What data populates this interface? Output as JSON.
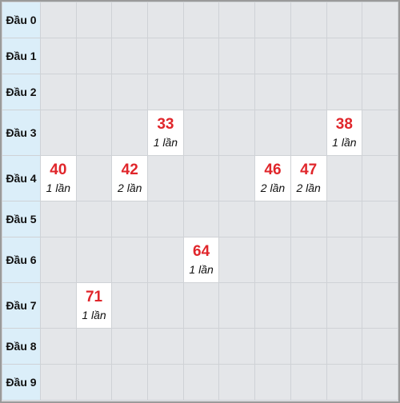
{
  "rows": [
    {
      "label": "Đầu 0",
      "cells": [
        null,
        null,
        null,
        null,
        null,
        null,
        null,
        null,
        null,
        null
      ]
    },
    {
      "label": "Đầu 1",
      "cells": [
        null,
        null,
        null,
        null,
        null,
        null,
        null,
        null,
        null,
        null
      ]
    },
    {
      "label": "Đầu 2",
      "cells": [
        null,
        null,
        null,
        null,
        null,
        null,
        null,
        null,
        null,
        null
      ]
    },
    {
      "label": "Đầu 3",
      "cells": [
        null,
        null,
        null,
        {
          "number": "33",
          "count": "1 lần"
        },
        null,
        null,
        null,
        null,
        {
          "number": "38",
          "count": "1 lần"
        },
        null
      ]
    },
    {
      "label": "Đầu 4",
      "cells": [
        {
          "number": "40",
          "count": "1 lần"
        },
        null,
        {
          "number": "42",
          "count": "2 lần"
        },
        null,
        null,
        null,
        {
          "number": "46",
          "count": "2 lần"
        },
        {
          "number": "47",
          "count": "2 lần"
        },
        null,
        null
      ]
    },
    {
      "label": "Đầu 5",
      "cells": [
        null,
        null,
        null,
        null,
        null,
        null,
        null,
        null,
        null,
        null
      ]
    },
    {
      "label": "Đầu 6",
      "cells": [
        null,
        null,
        null,
        null,
        {
          "number": "64",
          "count": "1 lần"
        },
        null,
        null,
        null,
        null,
        null
      ]
    },
    {
      "label": "Đầu 7",
      "cells": [
        null,
        {
          "number": "71",
          "count": "1 lần"
        },
        null,
        null,
        null,
        null,
        null,
        null,
        null,
        null
      ]
    },
    {
      "label": "Đầu 8",
      "cells": [
        null,
        null,
        null,
        null,
        null,
        null,
        null,
        null,
        null,
        null
      ]
    },
    {
      "label": "Đầu 9",
      "cells": [
        null,
        null,
        null,
        null,
        null,
        null,
        null,
        null,
        null,
        null
      ]
    }
  ]
}
